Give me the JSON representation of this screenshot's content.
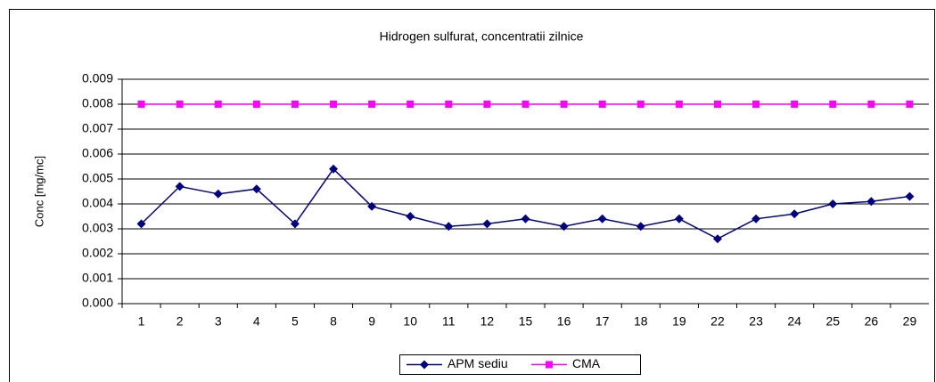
{
  "chart_data": {
    "type": "line",
    "title": "Hidrogen sulfurat, concentratii zilnice",
    "y_label": "Conc [mg/mc]",
    "categories": [
      "1",
      "2",
      "3",
      "4",
      "5",
      "8",
      "9",
      "10",
      "11",
      "12",
      "15",
      "16",
      "17",
      "18",
      "19",
      "22",
      "23",
      "24",
      "25",
      "26",
      "29"
    ],
    "series": [
      {
        "name": "APM sediu",
        "color": "#000080",
        "marker": "diamond",
        "values": [
          0.0032,
          0.0047,
          0.0044,
          0.0046,
          0.0032,
          0.0054,
          0.0039,
          0.0035,
          0.0031,
          0.0032,
          0.0034,
          0.0031,
          0.0034,
          0.0031,
          0.0034,
          0.0026,
          0.0034,
          0.0036,
          0.004,
          0.0041,
          0.0043
        ]
      },
      {
        "name": "CMA",
        "color": "#FF00FF",
        "marker": "square",
        "values": [
          0.008,
          0.008,
          0.008,
          0.008,
          0.008,
          0.008,
          0.008,
          0.008,
          0.008,
          0.008,
          0.008,
          0.008,
          0.008,
          0.008,
          0.008,
          0.008,
          0.008,
          0.008,
          0.008,
          0.008,
          0.008
        ]
      }
    ],
    "ylim": [
      0,
      0.009
    ],
    "yticks": [
      {
        "value": 0,
        "label": "0.000"
      },
      0.001,
      0.002,
      0.003,
      0.004,
      0.005,
      0.006,
      0.007,
      0.008,
      0.009
    ],
    "grid": true,
    "legend": "bottom"
  }
}
